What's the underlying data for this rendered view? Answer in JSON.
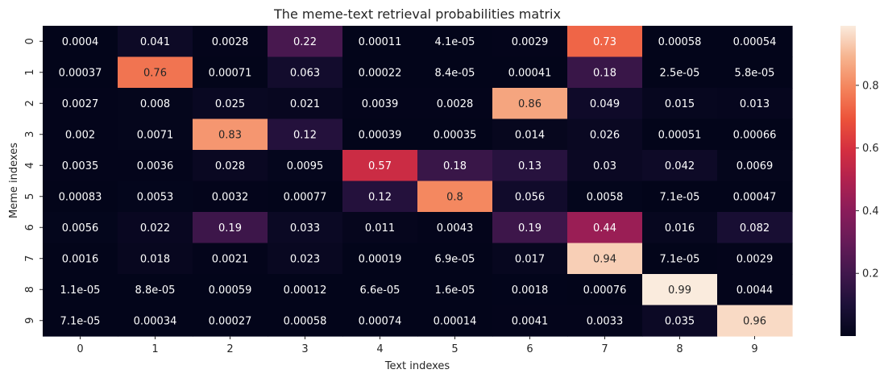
{
  "chart_data": {
    "type": "heatmap",
    "title": "The meme-text retrieval probabilities matrix",
    "xlabel": "Text indexes",
    "ylabel": "Meme indexes",
    "x_categories": [
      "0",
      "1",
      "2",
      "3",
      "4",
      "5",
      "6",
      "7",
      "8",
      "9"
    ],
    "y_categories": [
      "0",
      "1",
      "2",
      "3",
      "4",
      "5",
      "6",
      "7",
      "8",
      "9"
    ],
    "values": [
      [
        0.0004,
        0.041,
        0.0028,
        0.22,
        0.00011,
        4.1e-05,
        0.0029,
        0.73,
        0.00058,
        0.00054
      ],
      [
        0.00037,
        0.76,
        0.00071,
        0.063,
        0.00022,
        8.4e-05,
        0.00041,
        0.18,
        2.5e-05,
        5.8e-05
      ],
      [
        0.0027,
        0.008,
        0.025,
        0.021,
        0.0039,
        0.0028,
        0.86,
        0.049,
        0.015,
        0.013
      ],
      [
        0.002,
        0.0071,
        0.83,
        0.12,
        0.00039,
        0.00035,
        0.014,
        0.026,
        0.00051,
        0.00066
      ],
      [
        0.0035,
        0.0036,
        0.028,
        0.0095,
        0.57,
        0.18,
        0.13,
        0.03,
        0.042,
        0.0069
      ],
      [
        0.00083,
        0.0053,
        0.0032,
        0.00077,
        0.12,
        0.8,
        0.056,
        0.0058,
        7.1e-05,
        0.00047
      ],
      [
        0.0056,
        0.022,
        0.19,
        0.033,
        0.011,
        0.0043,
        0.19,
        0.44,
        0.016,
        0.082
      ],
      [
        0.0016,
        0.018,
        0.0021,
        0.023,
        0.00019,
        6.9e-05,
        0.017,
        0.94,
        7.1e-05,
        0.0029
      ],
      [
        1.1e-05,
        8.8e-05,
        0.00059,
        0.00012,
        6.6e-05,
        1.6e-05,
        0.0018,
        0.00076,
        0.99,
        0.0044
      ],
      [
        7.1e-05,
        0.00034,
        0.00027,
        0.00058,
        0.00074,
        0.00014,
        0.0041,
        0.0033,
        0.035,
        0.96
      ]
    ],
    "annotations": [
      [
        "0.0004",
        "0.041",
        "0.0028",
        "0.22",
        "0.00011",
        "4.1e-05",
        "0.0029",
        "0.73",
        "0.00058",
        "0.00054"
      ],
      [
        "0.00037",
        "0.76",
        "0.00071",
        "0.063",
        "0.00022",
        "8.4e-05",
        "0.00041",
        "0.18",
        "2.5e-05",
        "5.8e-05"
      ],
      [
        "0.0027",
        "0.008",
        "0.025",
        "0.021",
        "0.0039",
        "0.0028",
        "0.86",
        "0.049",
        "0.015",
        "0.013"
      ],
      [
        "0.002",
        "0.0071",
        "0.83",
        "0.12",
        "0.00039",
        "0.00035",
        "0.014",
        "0.026",
        "0.00051",
        "0.00066"
      ],
      [
        "0.0035",
        "0.0036",
        "0.028",
        "0.0095",
        "0.57",
        "0.18",
        "0.13",
        "0.03",
        "0.042",
        "0.0069"
      ],
      [
        "0.00083",
        "0.0053",
        "0.0032",
        "0.00077",
        "0.12",
        "0.8",
        "0.056",
        "0.0058",
        "7.1e-05",
        "0.00047"
      ],
      [
        "0.0056",
        "0.022",
        "0.19",
        "0.033",
        "0.011",
        "0.0043",
        "0.19",
        "0.44",
        "0.016",
        "0.082"
      ],
      [
        "0.0016",
        "0.018",
        "0.0021",
        "0.023",
        "0.00019",
        "6.9e-05",
        "0.017",
        "0.94",
        "7.1e-05",
        "0.0029"
      ],
      [
        "1.1e-05",
        "8.8e-05",
        "0.00059",
        "0.00012",
        "6.6e-05",
        "1.6e-05",
        "0.0018",
        "0.00076",
        "0.99",
        "0.0044"
      ],
      [
        "7.1e-05",
        "0.00034",
        "0.00027",
        "0.00058",
        "0.00074",
        "0.00014",
        "0.0041",
        "0.0033",
        "0.035",
        "0.96"
      ]
    ],
    "colorbar": {
      "colormap": "rocket",
      "range": [
        1.1e-05,
        0.99
      ],
      "ticks": [
        0.2,
        0.4,
        0.6,
        0.8
      ],
      "tick_labels": [
        "0.2",
        "0.4",
        "0.6",
        "0.8"
      ]
    },
    "grid": false,
    "legend": "colorbar-right"
  }
}
